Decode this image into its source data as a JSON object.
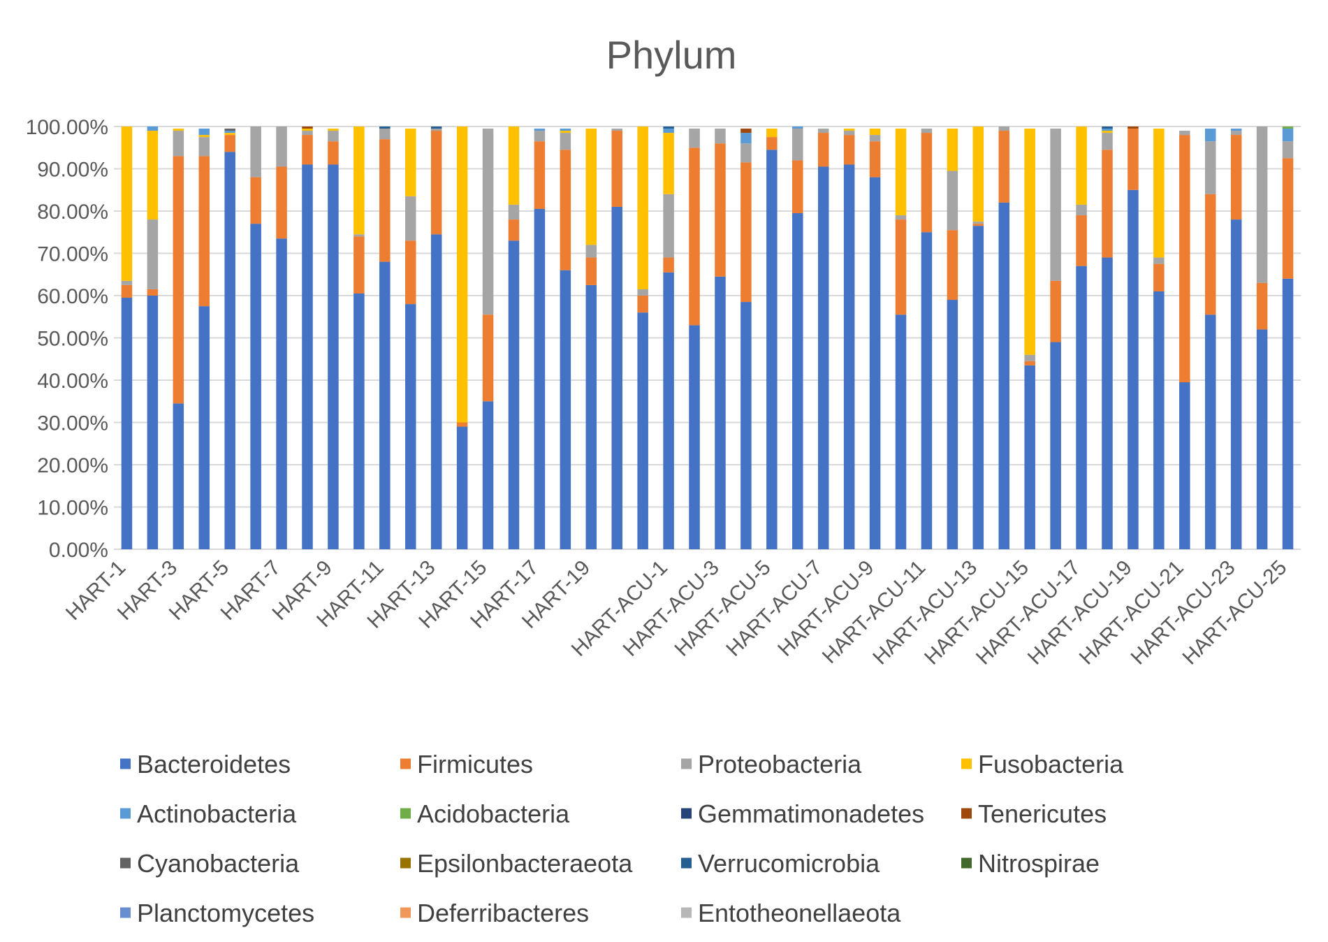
{
  "chart_data": {
    "type": "bar",
    "stacked": "percent",
    "title": "Phylum",
    "xlabel": "",
    "ylabel": "",
    "ylim": [
      0,
      100
    ],
    "yticks": [
      "0.00%",
      "10.00%",
      "20.00%",
      "30.00%",
      "40.00%",
      "50.00%",
      "60.00%",
      "70.00%",
      "80.00%",
      "90.00%",
      "100.00%"
    ],
    "grid": true,
    "legend_position": "bottom",
    "categories": [
      "HART-1",
      "HART-2",
      "HART-3",
      "HART-4",
      "HART-5",
      "HART-6",
      "HART-7",
      "HART-8",
      "HART-9",
      "HART-10",
      "HART-11",
      "HART-12",
      "HART-13",
      "HART-14",
      "HART-15",
      "HART-16",
      "HART-17",
      "HART-18",
      "HART-19",
      "HART-20",
      "HART-21",
      "HART-ACU-1",
      "HART-ACU-2",
      "HART-ACU-3",
      "HART-ACU-4",
      "HART-ACU-5",
      "HART-ACU-6",
      "HART-ACU-7",
      "HART-ACU-8",
      "HART-ACU-9",
      "HART-ACU-10",
      "HART-ACU-11",
      "HART-ACU-12",
      "HART-ACU-13",
      "HART-ACU-14",
      "HART-ACU-15",
      "HART-ACU-16",
      "HART-ACU-17",
      "HART-ACU-18",
      "HART-ACU-19",
      "HART-ACU-20",
      "HART-ACU-21",
      "HART-ACU-22",
      "HART-ACU-23",
      "HART-ACU-24",
      "HART-ACU-25"
    ],
    "visible_tick_labels": [
      "HART-1",
      "HART-3",
      "HART-5",
      "HART-7",
      "HART-9",
      "HART-11",
      "HART-13",
      "HART-15",
      "HART-17",
      "HART-19",
      "HART-ACU-1",
      "HART-ACU-3",
      "HART-ACU-5",
      "HART-ACU-7",
      "HART-ACU-9",
      "HART-ACU-11",
      "HART-ACU-13",
      "HART-ACU-15",
      "HART-ACU-17",
      "HART-ACU-19",
      "HART-ACU-21",
      "HART-ACU-23",
      "HART-ACU-25"
    ],
    "series": [
      {
        "name": "Bacteroidetes",
        "color": "#4472C4",
        "values": [
          59.5,
          60,
          34.5,
          57.5,
          94,
          77,
          73.5,
          91,
          91,
          60.5,
          68,
          58,
          74.5,
          29,
          35,
          73,
          80.5,
          66,
          62.5,
          81,
          56,
          65.5,
          53,
          64.5,
          58.5,
          94.5,
          79.5,
          90.5,
          91,
          88,
          55.5,
          75,
          59,
          76.5,
          82,
          43.5,
          49,
          67,
          69,
          85,
          61,
          39.5,
          55.5,
          78,
          52,
          64
        ]
      },
      {
        "name": "Firmicutes",
        "color": "#ED7D31",
        "values": [
          3,
          1.5,
          58.5,
          35.5,
          4,
          11,
          17,
          7,
          5.5,
          13.5,
          29,
          15,
          24.5,
          1,
          20.5,
          5,
          16,
          28.5,
          6.5,
          18,
          4,
          3.5,
          42,
          31.5,
          33,
          3,
          12.5,
          8,
          7,
          8.5,
          22.5,
          23.5,
          16.5,
          0.5,
          17,
          1,
          14.5,
          12,
          25.5,
          14.5,
          6.5,
          58.5,
          28.5,
          20,
          11,
          28.5
        ]
      },
      {
        "name": "Proteobacteria",
        "color": "#A5A5A5",
        "values": [
          1,
          16.5,
          6,
          4.5,
          0,
          12,
          9.5,
          1,
          2.5,
          0.5,
          2.5,
          10.5,
          0.5,
          0,
          44,
          3.5,
          2.5,
          4,
          3,
          0.5,
          1.5,
          15,
          4.5,
          3.5,
          4.5,
          0,
          7.5,
          1,
          1,
          1.5,
          1,
          1,
          14,
          0.5,
          1,
          1.5,
          36,
          2.5,
          4,
          0,
          1.5,
          1,
          12.5,
          1,
          37,
          4
        ]
      },
      {
        "name": "Fusobacteria",
        "color": "#FFC000",
        "values": [
          36.5,
          21,
          0.5,
          0.5,
          0.5,
          0,
          0,
          0.5,
          0.5,
          25.5,
          0,
          16,
          0,
          70,
          0,
          18.5,
          0,
          0.5,
          27.5,
          0,
          38.5,
          14.5,
          0,
          0,
          0,
          2,
          0,
          0,
          0.5,
          1.5,
          20.5,
          0,
          10,
          22.5,
          0,
          53.5,
          0,
          18.5,
          0.5,
          0,
          30.5,
          0,
          0,
          0,
          0,
          0
        ]
      },
      {
        "name": "Actinobacteria",
        "color": "#5B9BD5",
        "values": [
          0,
          1,
          0,
          1.5,
          0.5,
          0,
          0,
          0,
          0,
          0,
          0,
          0,
          0,
          0,
          0,
          0,
          0.5,
          0.5,
          0,
          0,
          0,
          1,
          0,
          0,
          2.5,
          0,
          0.5,
          0,
          0,
          0,
          0,
          0,
          0,
          0,
          0,
          0,
          0,
          0,
          0.5,
          0,
          0,
          0,
          3,
          0.5,
          0,
          3
        ]
      },
      {
        "name": "Acidobacteria",
        "color": "#70AD47",
        "values": [
          0,
          0,
          0,
          0,
          0,
          0,
          0,
          0,
          0,
          0,
          0,
          0,
          0,
          0,
          0,
          0,
          0,
          0,
          0,
          0,
          0,
          0,
          0,
          0,
          0,
          0,
          0,
          0,
          0,
          0,
          0,
          0,
          0,
          0,
          0,
          0,
          0,
          0,
          0,
          0,
          0,
          0,
          0,
          0,
          0,
          0.5
        ]
      },
      {
        "name": "Gemmatimonadetes",
        "color": "#264478",
        "values": [
          0,
          0,
          0,
          0,
          0,
          0,
          0,
          0,
          0,
          0,
          0,
          0,
          0,
          0,
          0,
          0,
          0,
          0,
          0,
          0,
          0,
          0,
          0,
          0,
          0,
          0,
          0,
          0,
          0,
          0,
          0,
          0,
          0,
          0,
          0,
          0,
          0,
          0,
          0,
          0,
          0,
          0,
          0,
          0,
          0,
          0
        ]
      },
      {
        "name": "Tenericutes",
        "color": "#9E480E",
        "values": [
          0,
          0,
          0,
          0,
          0,
          0,
          0,
          0.5,
          0,
          0,
          0,
          0,
          0,
          0,
          0,
          0,
          0,
          0,
          0,
          0,
          0,
          0,
          0,
          0,
          1,
          0,
          0,
          0,
          0,
          0,
          0,
          0,
          0,
          0,
          0,
          0,
          0,
          0,
          0,
          0.5,
          0,
          0,
          0,
          0,
          0,
          0
        ]
      },
      {
        "name": "Cyanobacteria",
        "color": "#636363",
        "values": [
          0,
          0,
          0,
          0,
          0.5,
          0,
          0,
          0,
          0,
          0,
          0,
          0,
          0,
          0,
          0,
          0,
          0,
          0,
          0,
          0,
          0,
          0,
          0,
          0,
          0,
          0,
          0,
          0,
          0,
          0,
          0,
          0,
          0,
          0,
          0,
          0,
          0,
          0,
          0,
          0,
          0,
          0,
          0,
          0,
          0,
          0
        ]
      },
      {
        "name": "Epsilonbacteraeota",
        "color": "#997300",
        "values": [
          0,
          0,
          0,
          0,
          0,
          0,
          0,
          0,
          0,
          0,
          0,
          0,
          0,
          0,
          0,
          0,
          0,
          0,
          0,
          0,
          0,
          0,
          0,
          0,
          0,
          0,
          0,
          0,
          0,
          0,
          0,
          0,
          0,
          0,
          0,
          0,
          0,
          0,
          0,
          0,
          0,
          0,
          0,
          0,
          0,
          0
        ]
      },
      {
        "name": "Verrucomicrobia",
        "color": "#255E91",
        "values": [
          0,
          0,
          0,
          0,
          0,
          0,
          0,
          0,
          0,
          0,
          0.5,
          0,
          0.5,
          0,
          0,
          0,
          0,
          0,
          0,
          0,
          0,
          0.5,
          0,
          0,
          0,
          0,
          0,
          0,
          0,
          0,
          0,
          0,
          0,
          0,
          0,
          0,
          0,
          0,
          0.5,
          0,
          0,
          0,
          0,
          0,
          0,
          0
        ]
      },
      {
        "name": "Nitrospirae",
        "color": "#43682B",
        "values": [
          0,
          0,
          0,
          0,
          0,
          0,
          0,
          0,
          0,
          0,
          0,
          0,
          0,
          0,
          0,
          0,
          0,
          0,
          0,
          0,
          0,
          0,
          0,
          0,
          0,
          0,
          0,
          0,
          0,
          0,
          0,
          0,
          0,
          0,
          0,
          0,
          0,
          0,
          0,
          0,
          0,
          0,
          0,
          0,
          0,
          0
        ]
      },
      {
        "name": "Planctomycetes",
        "color": "#698ED0",
        "values": [
          0,
          0,
          0,
          0,
          0,
          0,
          0,
          0,
          0,
          0,
          0,
          0,
          0,
          0,
          0,
          0,
          0,
          0,
          0,
          0,
          0,
          0,
          0,
          0,
          0,
          0,
          0,
          0,
          0,
          0,
          0,
          0,
          0,
          0,
          0,
          0,
          0,
          0,
          0,
          0,
          0,
          0,
          0,
          0,
          0,
          0
        ]
      },
      {
        "name": "Deferribacteres",
        "color": "#F1975A",
        "values": [
          0,
          0,
          0,
          0,
          0,
          0,
          0,
          0,
          0,
          0,
          0,
          0,
          0,
          0,
          0,
          0,
          0,
          0,
          0,
          0,
          0,
          0,
          0,
          0,
          0,
          0,
          0,
          0,
          0,
          0,
          0,
          0,
          0,
          0,
          0,
          0,
          0,
          0,
          0,
          0,
          0,
          0,
          0,
          0,
          0,
          0
        ]
      },
      {
        "name": "Entotheonellaeota",
        "color": "#B7B7B7",
        "values": [
          0,
          0,
          0,
          0,
          0,
          0,
          0,
          0,
          0,
          0,
          0,
          0,
          0,
          0,
          0,
          0,
          0,
          0,
          0,
          0,
          0,
          0,
          0,
          0,
          0,
          0,
          0,
          0,
          0,
          0,
          0,
          0,
          0,
          0,
          0,
          0,
          0,
          0,
          0,
          0,
          0,
          0,
          0,
          0,
          0,
          0
        ]
      }
    ],
    "colors": {
      "gridline": "#D9D9D9",
      "axis_text": "#595959",
      "title_text": "#595959",
      "legend_text": "#404040"
    }
  }
}
